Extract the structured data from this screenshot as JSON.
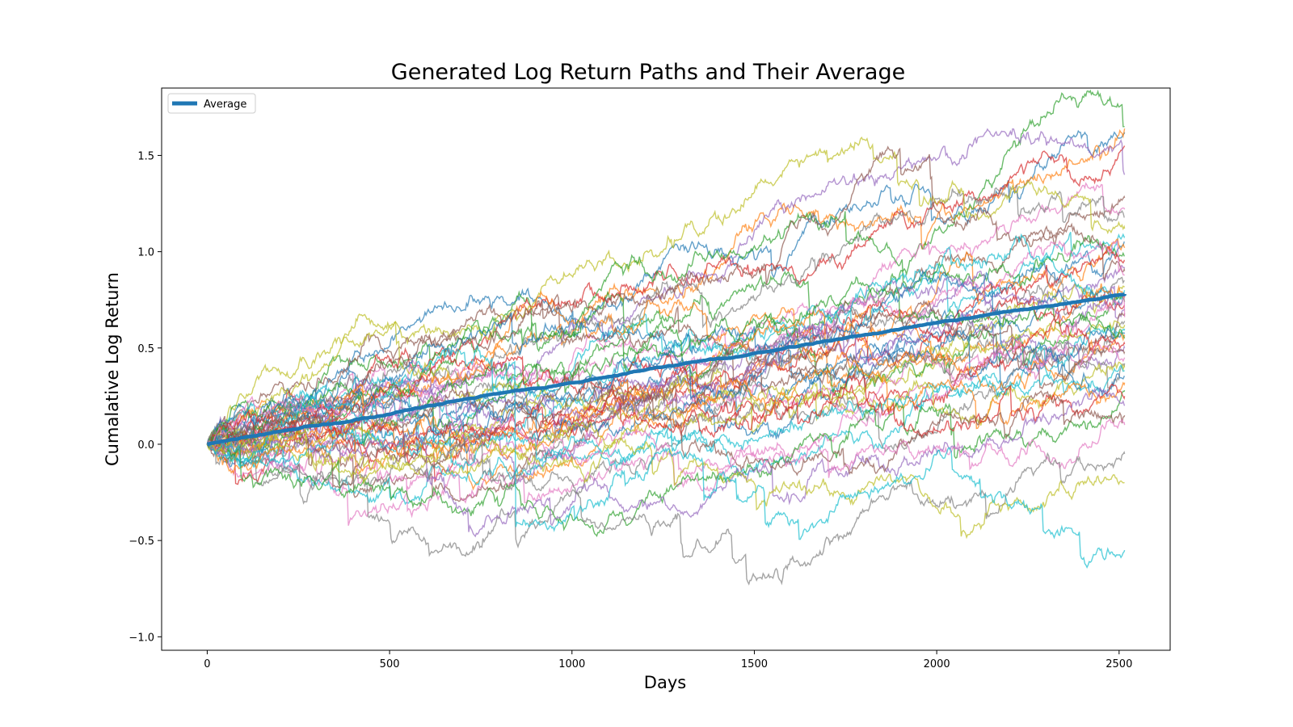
{
  "chart_data": {
    "type": "line",
    "title": "Generated Log Return Paths and Their Average",
    "xlabel": "Days",
    "ylabel": "Cumalative Log Return",
    "xlim": [
      -125,
      2640
    ],
    "ylim": [
      -1.07,
      1.85
    ],
    "x_ticks": [
      0,
      500,
      1000,
      1500,
      2000,
      2500
    ],
    "x_tick_labels": [
      "0",
      "500",
      "1000",
      "1500",
      "2000",
      "2500"
    ],
    "y_ticks": [
      -1.0,
      -0.5,
      0.0,
      0.5,
      1.0,
      1.5
    ],
    "y_tick_labels": [
      "−1.0",
      "−0.5",
      "0.0",
      "0.5",
      "1.0",
      "1.5"
    ],
    "grid": false,
    "legend": {
      "placement": "upper left",
      "entries": [
        "Average"
      ]
    },
    "path_colors": [
      "#1f77b4",
      "#ff7f0e",
      "#2ca02c",
      "#d62728",
      "#9467bd",
      "#8c564b",
      "#e377c2",
      "#7f7f7f",
      "#bcbd22",
      "#17becf"
    ],
    "path_count": 50,
    "path_end_values": [
      1.62,
      1.64,
      1.65,
      1.55,
      1.4,
      1.28,
      1.22,
      1.18,
      1.12,
      1.08,
      1.05,
      1.02,
      0.98,
      0.95,
      0.92,
      0.9,
      0.88,
      0.85,
      0.82,
      0.8,
      0.78,
      0.76,
      0.74,
      0.72,
      0.7,
      0.68,
      0.66,
      0.64,
      0.62,
      0.6,
      0.58,
      0.56,
      0.55,
      0.52,
      0.5,
      0.48,
      0.45,
      0.42,
      0.4,
      0.38,
      0.35,
      0.32,
      0.28,
      0.25,
      0.2,
      0.15,
      0.1,
      -0.05,
      -0.2,
      -0.55
    ],
    "series": [
      {
        "name": "Average",
        "color": "#1f77b4",
        "x": [
          0,
          250,
          500,
          750,
          1000,
          1250,
          1500,
          1750,
          2000,
          2250,
          2515
        ],
        "values": [
          0.0,
          0.08,
          0.16,
          0.25,
          0.32,
          0.4,
          0.47,
          0.55,
          0.63,
          0.7,
          0.78
        ]
      }
    ]
  }
}
